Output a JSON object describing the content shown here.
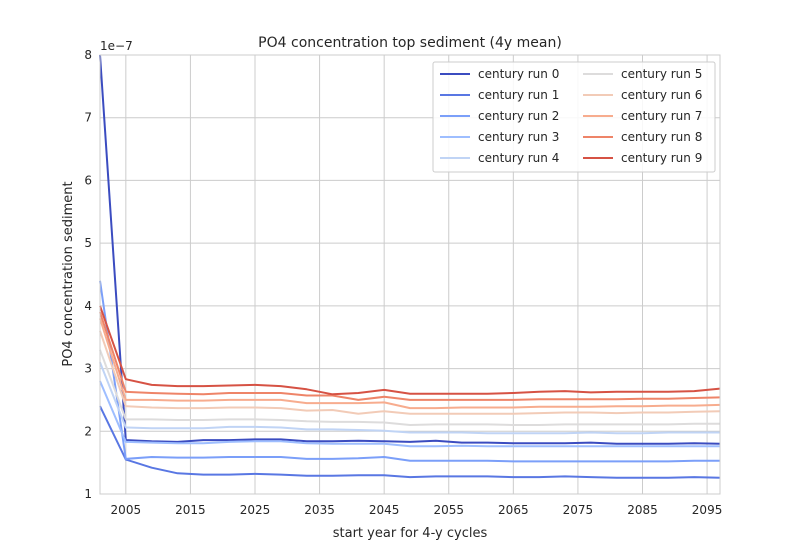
{
  "chart_data": {
    "type": "line",
    "title": "PO4 concentration top sediment (4y mean)",
    "xlabel": "start year for 4-y cycles",
    "ylabel": "PO4 concentration sediment",
    "y_offset_label": "1e−7",
    "xlim": [
      2001,
      2097
    ],
    "ylim": [
      1,
      8
    ],
    "y_scale": "1e-7",
    "x_ticks": [
      "2005",
      "2015",
      "2025",
      "2035",
      "2045",
      "2055",
      "2065",
      "2075",
      "2085",
      "2095"
    ],
    "y_ticks": [
      "1",
      "2",
      "3",
      "4",
      "5",
      "6",
      "7",
      "8"
    ],
    "grid": true,
    "legend_position": "top-right",
    "x": [
      2001,
      2005,
      2009,
      2013,
      2017,
      2021,
      2025,
      2029,
      2033,
      2037,
      2041,
      2045,
      2049,
      2053,
      2057,
      2061,
      2065,
      2069,
      2073,
      2077,
      2081,
      2085,
      2089,
      2093,
      2097
    ],
    "series": [
      {
        "name": "century run 0",
        "color": "#3b4cc0",
        "values": [
          8.0,
          1.86,
          1.84,
          1.83,
          1.86,
          1.86,
          1.87,
          1.87,
          1.84,
          1.84,
          1.85,
          1.84,
          1.83,
          1.85,
          1.82,
          1.82,
          1.81,
          1.81,
          1.81,
          1.82,
          1.8,
          1.8,
          1.8,
          1.81,
          1.8
        ]
      },
      {
        "name": "century run 1",
        "color": "#5977e3",
        "values": [
          2.4,
          1.55,
          1.42,
          1.33,
          1.31,
          1.31,
          1.32,
          1.31,
          1.29,
          1.29,
          1.3,
          1.3,
          1.27,
          1.28,
          1.28,
          1.28,
          1.27,
          1.27,
          1.28,
          1.27,
          1.26,
          1.26,
          1.26,
          1.27,
          1.26
        ]
      },
      {
        "name": "century run 2",
        "color": "#7b9ff9",
        "values": [
          4.4,
          1.56,
          1.59,
          1.58,
          1.58,
          1.59,
          1.59,
          1.59,
          1.56,
          1.56,
          1.57,
          1.59,
          1.53,
          1.53,
          1.53,
          1.53,
          1.52,
          1.52,
          1.52,
          1.52,
          1.52,
          1.52,
          1.52,
          1.53,
          1.53
        ]
      },
      {
        "name": "century run 3",
        "color": "#9ebeff",
        "values": [
          2.8,
          1.83,
          1.82,
          1.81,
          1.81,
          1.83,
          1.84,
          1.84,
          1.81,
          1.8,
          1.8,
          1.8,
          1.76,
          1.76,
          1.77,
          1.76,
          1.76,
          1.76,
          1.76,
          1.76,
          1.76,
          1.76,
          1.76,
          1.76,
          1.76
        ]
      },
      {
        "name": "century run 4",
        "color": "#c0d4f5",
        "values": [
          3.1,
          2.06,
          2.05,
          2.05,
          2.05,
          2.07,
          2.07,
          2.06,
          2.03,
          2.03,
          2.02,
          2.01,
          1.98,
          1.98,
          1.98,
          1.97,
          1.97,
          1.97,
          1.97,
          1.98,
          1.97,
          1.97,
          1.98,
          1.98,
          1.98
        ]
      },
      {
        "name": "century run 5",
        "color": "#dddcdc",
        "values": [
          3.3,
          2.19,
          2.19,
          2.18,
          2.18,
          2.19,
          2.19,
          2.18,
          2.16,
          2.15,
          2.15,
          2.14,
          2.1,
          2.11,
          2.11,
          2.11,
          2.1,
          2.1,
          2.11,
          2.11,
          2.11,
          2.11,
          2.11,
          2.12,
          2.12
        ]
      },
      {
        "name": "century run 6",
        "color": "#f2cbb7",
        "values": [
          3.6,
          2.4,
          2.38,
          2.37,
          2.37,
          2.38,
          2.38,
          2.37,
          2.33,
          2.34,
          2.28,
          2.32,
          2.28,
          2.28,
          2.28,
          2.28,
          2.28,
          2.29,
          2.3,
          2.3,
          2.29,
          2.3,
          2.3,
          2.31,
          2.32
        ]
      },
      {
        "name": "century run 7",
        "color": "#f7ac8e",
        "values": [
          3.8,
          2.5,
          2.5,
          2.49,
          2.49,
          2.5,
          2.5,
          2.5,
          2.45,
          2.45,
          2.45,
          2.46,
          2.37,
          2.37,
          2.38,
          2.38,
          2.38,
          2.39,
          2.39,
          2.39,
          2.4,
          2.4,
          2.41,
          2.41,
          2.42
        ]
      },
      {
        "name": "century run 8",
        "color": "#ee8468",
        "values": [
          3.9,
          2.63,
          2.61,
          2.6,
          2.59,
          2.61,
          2.61,
          2.61,
          2.57,
          2.57,
          2.5,
          2.55,
          2.5,
          2.5,
          2.5,
          2.5,
          2.5,
          2.51,
          2.51,
          2.51,
          2.51,
          2.52,
          2.52,
          2.53,
          2.54
        ]
      },
      {
        "name": "century run 9",
        "color": "#d65244",
        "values": [
          4.0,
          2.83,
          2.74,
          2.72,
          2.72,
          2.73,
          2.74,
          2.72,
          2.67,
          2.59,
          2.61,
          2.66,
          2.6,
          2.6,
          2.6,
          2.6,
          2.61,
          2.63,
          2.64,
          2.62,
          2.63,
          2.63,
          2.63,
          2.64,
          2.68
        ]
      }
    ]
  }
}
